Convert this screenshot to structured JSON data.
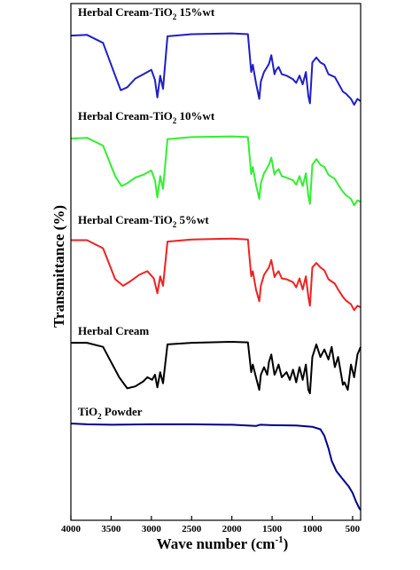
{
  "chart_data": {
    "type": "line",
    "xlabel": "Wave number (cm",
    "xlabel_sup": "-1",
    "xlabel_end": ")",
    "ylabel": "Transmittance (%)",
    "xlim": [
      4000,
      400
    ],
    "x_reversed": true,
    "grid": false,
    "x_ticks": [
      4000,
      3500,
      3000,
      2500,
      2000,
      1500,
      1000,
      500
    ],
    "series": [
      {
        "name": "Herbal Cream-TiO2 15%wt",
        "label_main": "Herbal Cream-TiO",
        "label_sub": "2",
        "label_end": " 15%wt",
        "color": "#1f1fc4",
        "points": [
          [
            4000,
            0.95
          ],
          [
            3800,
            0.96
          ],
          [
            3600,
            0.85
          ],
          [
            3450,
            0.4
          ],
          [
            3380,
            0.2
          ],
          [
            3300,
            0.24
          ],
          [
            3200,
            0.36
          ],
          [
            3100,
            0.42
          ],
          [
            3000,
            0.48
          ],
          [
            2955,
            0.34
          ],
          [
            2925,
            0.1
          ],
          [
            2890,
            0.4
          ],
          [
            2855,
            0.22
          ],
          [
            2800,
            0.94
          ],
          [
            2500,
            0.97
          ],
          [
            2000,
            0.98
          ],
          [
            1800,
            0.97
          ],
          [
            1760,
            0.45
          ],
          [
            1740,
            0.55
          ],
          [
            1700,
            0.3
          ],
          [
            1660,
            0.08
          ],
          [
            1640,
            0.32
          ],
          [
            1600,
            0.45
          ],
          [
            1540,
            0.56
          ],
          [
            1510,
            0.68
          ],
          [
            1470,
            0.42
          ],
          [
            1455,
            0.47
          ],
          [
            1420,
            0.52
          ],
          [
            1380,
            0.42
          ],
          [
            1320,
            0.4
          ],
          [
            1240,
            0.35
          ],
          [
            1200,
            0.3
          ],
          [
            1160,
            0.4
          ],
          [
            1120,
            0.28
          ],
          [
            1080,
            0.45
          ],
          [
            1050,
            0.12
          ],
          [
            1030,
            0.02
          ],
          [
            1000,
            0.58
          ],
          [
            950,
            0.65
          ],
          [
            900,
            0.58
          ],
          [
            850,
            0.55
          ],
          [
            800,
            0.42
          ],
          [
            720,
            0.38
          ],
          [
            680,
            0.3
          ],
          [
            620,
            0.18
          ],
          [
            580,
            0.15
          ],
          [
            520,
            0.08
          ],
          [
            480,
            0.0
          ],
          [
            440,
            0.08
          ],
          [
            400,
            0.05
          ]
        ]
      },
      {
        "name": "Herbal Cream-TiO2 10%wt",
        "label_main": "Herbal Cream-TiO",
        "label_sub": "2",
        "label_end": " 10%wt",
        "color": "#33ee33",
        "points": [
          [
            4000,
            0.95
          ],
          [
            3800,
            0.96
          ],
          [
            3600,
            0.85
          ],
          [
            3450,
            0.42
          ],
          [
            3370,
            0.28
          ],
          [
            3300,
            0.32
          ],
          [
            3200,
            0.4
          ],
          [
            3100,
            0.44
          ],
          [
            3000,
            0.5
          ],
          [
            2955,
            0.36
          ],
          [
            2925,
            0.12
          ],
          [
            2890,
            0.42
          ],
          [
            2855,
            0.24
          ],
          [
            2800,
            0.94
          ],
          [
            2500,
            0.97
          ],
          [
            2000,
            0.98
          ],
          [
            1800,
            0.97
          ],
          [
            1760,
            0.45
          ],
          [
            1740,
            0.55
          ],
          [
            1700,
            0.3
          ],
          [
            1660,
            0.1
          ],
          [
            1640,
            0.32
          ],
          [
            1600,
            0.46
          ],
          [
            1540,
            0.58
          ],
          [
            1510,
            0.68
          ],
          [
            1470,
            0.44
          ],
          [
            1455,
            0.48
          ],
          [
            1420,
            0.52
          ],
          [
            1380,
            0.42
          ],
          [
            1320,
            0.4
          ],
          [
            1240,
            0.36
          ],
          [
            1200,
            0.3
          ],
          [
            1160,
            0.42
          ],
          [
            1120,
            0.28
          ],
          [
            1080,
            0.46
          ],
          [
            1050,
            0.14
          ],
          [
            1030,
            0.03
          ],
          [
            1000,
            0.58
          ],
          [
            950,
            0.66
          ],
          [
            900,
            0.58
          ],
          [
            850,
            0.55
          ],
          [
            800,
            0.44
          ],
          [
            720,
            0.38
          ],
          [
            680,
            0.3
          ],
          [
            620,
            0.2
          ],
          [
            580,
            0.15
          ],
          [
            520,
            0.1
          ],
          [
            480,
            0.01
          ],
          [
            440,
            0.08
          ],
          [
            400,
            0.06
          ]
        ]
      },
      {
        "name": "Herbal Cream-TiO2 5%wt",
        "label_main": "Herbal Cream-TiO",
        "label_sub": "2",
        "label_end": " 5%wt",
        "color": "#ee2222",
        "points": [
          [
            4000,
            0.97
          ],
          [
            3800,
            0.97
          ],
          [
            3600,
            0.86
          ],
          [
            3450,
            0.44
          ],
          [
            3350,
            0.35
          ],
          [
            3250,
            0.42
          ],
          [
            3150,
            0.5
          ],
          [
            3050,
            0.55
          ],
          [
            2970,
            0.45
          ],
          [
            2925,
            0.25
          ],
          [
            2890,
            0.48
          ],
          [
            2855,
            0.35
          ],
          [
            2800,
            0.95
          ],
          [
            2500,
            0.98
          ],
          [
            2000,
            0.99
          ],
          [
            1800,
            0.98
          ],
          [
            1760,
            0.48
          ],
          [
            1740,
            0.55
          ],
          [
            1700,
            0.3
          ],
          [
            1660,
            0.14
          ],
          [
            1640,
            0.35
          ],
          [
            1600,
            0.5
          ],
          [
            1540,
            0.6
          ],
          [
            1510,
            0.7
          ],
          [
            1470,
            0.47
          ],
          [
            1455,
            0.5
          ],
          [
            1420,
            0.55
          ],
          [
            1380,
            0.45
          ],
          [
            1320,
            0.44
          ],
          [
            1240,
            0.4
          ],
          [
            1200,
            0.33
          ],
          [
            1160,
            0.45
          ],
          [
            1120,
            0.3
          ],
          [
            1080,
            0.48
          ],
          [
            1050,
            0.2
          ],
          [
            1030,
            0.08
          ],
          [
            1000,
            0.6
          ],
          [
            950,
            0.66
          ],
          [
            900,
            0.6
          ],
          [
            850,
            0.56
          ],
          [
            800,
            0.44
          ],
          [
            720,
            0.38
          ],
          [
            680,
            0.3
          ],
          [
            620,
            0.2
          ],
          [
            580,
            0.15
          ],
          [
            520,
            0.1
          ],
          [
            480,
            0.02
          ],
          [
            440,
            0.08
          ],
          [
            400,
            0.06
          ]
        ]
      },
      {
        "name": "Herbal Cream",
        "label_main": "Herbal Cream",
        "label_sub": "",
        "label_end": "",
        "color": "#000000",
        "points": [
          [
            4000,
            0.98
          ],
          [
            3800,
            0.98
          ],
          [
            3600,
            0.9
          ],
          [
            3500,
            0.6
          ],
          [
            3400,
            0.3
          ],
          [
            3300,
            0.08
          ],
          [
            3200,
            0.12
          ],
          [
            3100,
            0.22
          ],
          [
            3050,
            0.3
          ],
          [
            2990,
            0.25
          ],
          [
            2955,
            0.35
          ],
          [
            2925,
            0.1
          ],
          [
            2890,
            0.4
          ],
          [
            2855,
            0.18
          ],
          [
            2800,
            0.95
          ],
          [
            2500,
            0.98
          ],
          [
            2000,
            1.0
          ],
          [
            1800,
            0.99
          ],
          [
            1760,
            0.4
          ],
          [
            1740,
            0.55
          ],
          [
            1700,
            0.3
          ],
          [
            1660,
            0.05
          ],
          [
            1640,
            0.35
          ],
          [
            1600,
            0.5
          ],
          [
            1560,
            0.35
          ],
          [
            1540,
            0.6
          ],
          [
            1510,
            0.75
          ],
          [
            1470,
            0.35
          ],
          [
            1455,
            0.4
          ],
          [
            1420,
            0.55
          ],
          [
            1380,
            0.3
          ],
          [
            1320,
            0.4
          ],
          [
            1280,
            0.25
          ],
          [
            1240,
            0.45
          ],
          [
            1200,
            0.2
          ],
          [
            1160,
            0.5
          ],
          [
            1120,
            0.25
          ],
          [
            1080,
            0.55
          ],
          [
            1050,
            0.05
          ],
          [
            1030,
            -0.02
          ],
          [
            1000,
            0.7
          ],
          [
            950,
            0.95
          ],
          [
            900,
            0.7
          ],
          [
            850,
            0.85
          ],
          [
            800,
            0.65
          ],
          [
            760,
            0.9
          ],
          [
            720,
            0.5
          ],
          [
            680,
            0.7
          ],
          [
            620,
            0.15
          ],
          [
            600,
            0.2
          ],
          [
            560,
            0.05
          ],
          [
            520,
            0.55
          ],
          [
            480,
            0.3
          ],
          [
            440,
            0.75
          ],
          [
            400,
            0.9
          ]
        ]
      },
      {
        "name": "TiO2 Powder",
        "label_main": "TiO",
        "label_sub": "2",
        "label_end": " Powder",
        "color": "#00008b",
        "points": [
          [
            4000,
            1.0
          ],
          [
            3800,
            0.99
          ],
          [
            3500,
            0.985
          ],
          [
            3000,
            0.99
          ],
          [
            2500,
            0.99
          ],
          [
            2000,
            0.985
          ],
          [
            1700,
            0.97
          ],
          [
            1650,
            0.985
          ],
          [
            1500,
            0.98
          ],
          [
            1200,
            0.975
          ],
          [
            1000,
            0.96
          ],
          [
            900,
            0.93
          ],
          [
            850,
            0.85
          ],
          [
            800,
            0.7
          ],
          [
            760,
            0.55
          ],
          [
            700,
            0.42
          ],
          [
            650,
            0.36
          ],
          [
            600,
            0.3
          ],
          [
            550,
            0.24
          ],
          [
            500,
            0.16
          ],
          [
            460,
            0.06
          ],
          [
            420,
            -0.02
          ],
          [
            400,
            -0.05
          ]
        ]
      }
    ]
  }
}
